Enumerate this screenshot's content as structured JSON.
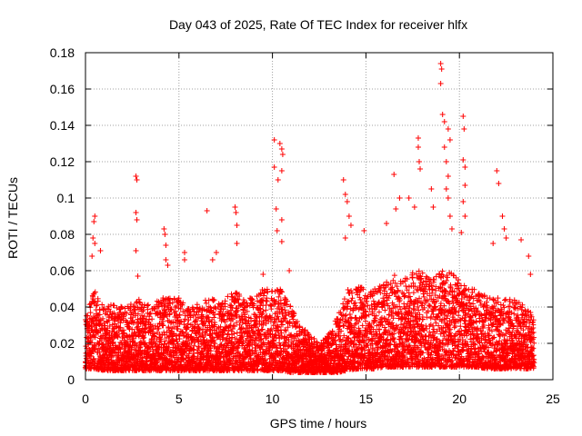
{
  "chart_data": {
    "type": "scatter",
    "title": "Day 043 of 2025, Rate Of TEC Index for receiver hlfx",
    "xlabel": "GPS time / hours",
    "ylabel": "ROTI / TECUs",
    "xlim": [
      0,
      25
    ],
    "ylim": [
      0,
      0.18
    ],
    "xticks": [
      0,
      5,
      10,
      15,
      20,
      25
    ],
    "xtick_labels": [
      "0",
      "5",
      "10",
      "15",
      "20",
      "25"
    ],
    "yticks": [
      0,
      0.02,
      0.04,
      0.06,
      0.08,
      0.1,
      0.12,
      0.14,
      0.16,
      0.18
    ],
    "ytick_labels": [
      "0",
      "0.02",
      "0.04",
      "0.06",
      "0.08",
      "0.1",
      "0.12",
      "0.14",
      "0.16",
      "0.18"
    ],
    "grid": true,
    "marker": "+",
    "series_color": "#ff0000",
    "bulk_envelope": {
      "x": [
        0,
        0.5,
        1,
        1.5,
        2,
        2.5,
        3,
        3.5,
        4,
        4.5,
        5,
        5.5,
        6,
        6.5,
        7,
        7.5,
        8,
        8.5,
        9,
        9.5,
        10,
        10.5,
        11,
        11.5,
        12,
        12.5,
        13,
        13.5,
        14,
        14.5,
        15,
        15.5,
        16,
        16.5,
        17,
        17.5,
        18,
        18.5,
        19,
        19.5,
        20,
        20.5,
        21,
        21.5,
        22,
        22.5,
        23,
        23.5,
        24
      ],
      "y_low": [
        0.006,
        0.006,
        0.005,
        0.005,
        0.005,
        0.005,
        0.005,
        0.005,
        0.005,
        0.005,
        0.005,
        0.005,
        0.005,
        0.005,
        0.005,
        0.005,
        0.005,
        0.005,
        0.005,
        0.005,
        0.005,
        0.005,
        0.004,
        0.004,
        0.004,
        0.004,
        0.004,
        0.004,
        0.005,
        0.006,
        0.006,
        0.006,
        0.007,
        0.007,
        0.007,
        0.007,
        0.007,
        0.007,
        0.007,
        0.007,
        0.007,
        0.007,
        0.007,
        0.006,
        0.006,
        0.006,
        0.006,
        0.006,
        0.006
      ],
      "y_high": [
        0.035,
        0.05,
        0.04,
        0.042,
        0.04,
        0.042,
        0.045,
        0.04,
        0.045,
        0.045,
        0.045,
        0.04,
        0.042,
        0.045,
        0.045,
        0.045,
        0.05,
        0.045,
        0.045,
        0.05,
        0.05,
        0.05,
        0.04,
        0.03,
        0.025,
        0.02,
        0.025,
        0.035,
        0.05,
        0.052,
        0.05,
        0.05,
        0.055,
        0.058,
        0.055,
        0.06,
        0.06,
        0.055,
        0.06,
        0.06,
        0.055,
        0.05,
        0.05,
        0.045,
        0.045,
        0.045,
        0.045,
        0.04,
        0.035
      ]
    },
    "outliers": [
      {
        "x": 0.5,
        "y": 0.09
      },
      {
        "x": 0.45,
        "y": 0.087
      },
      {
        "x": 0.4,
        "y": 0.078
      },
      {
        "x": 0.5,
        "y": 0.075
      },
      {
        "x": 0.35,
        "y": 0.068
      },
      {
        "x": 0.8,
        "y": 0.071
      },
      {
        "x": 2.7,
        "y": 0.112
      },
      {
        "x": 2.75,
        "y": 0.11
      },
      {
        "x": 2.7,
        "y": 0.092
      },
      {
        "x": 2.75,
        "y": 0.088
      },
      {
        "x": 2.7,
        "y": 0.071
      },
      {
        "x": 2.8,
        "y": 0.057
      },
      {
        "x": 4.2,
        "y": 0.083
      },
      {
        "x": 4.25,
        "y": 0.08
      },
      {
        "x": 4.3,
        "y": 0.074
      },
      {
        "x": 4.3,
        "y": 0.066
      },
      {
        "x": 4.4,
        "y": 0.063
      },
      {
        "x": 5.3,
        "y": 0.07
      },
      {
        "x": 5.3,
        "y": 0.066
      },
      {
        "x": 6.5,
        "y": 0.093
      },
      {
        "x": 6.8,
        "y": 0.066
      },
      {
        "x": 7.0,
        "y": 0.07
      },
      {
        "x": 8.0,
        "y": 0.095
      },
      {
        "x": 8.05,
        "y": 0.092
      },
      {
        "x": 8.1,
        "y": 0.085
      },
      {
        "x": 8.1,
        "y": 0.075
      },
      {
        "x": 9.5,
        "y": 0.058
      },
      {
        "x": 10.1,
        "y": 0.132
      },
      {
        "x": 10.4,
        "y": 0.13
      },
      {
        "x": 10.5,
        "y": 0.127
      },
      {
        "x": 10.55,
        "y": 0.124
      },
      {
        "x": 10.1,
        "y": 0.117
      },
      {
        "x": 10.5,
        "y": 0.115
      },
      {
        "x": 10.3,
        "y": 0.11
      },
      {
        "x": 10.2,
        "y": 0.094
      },
      {
        "x": 10.5,
        "y": 0.088
      },
      {
        "x": 10.25,
        "y": 0.082
      },
      {
        "x": 10.5,
        "y": 0.076
      },
      {
        "x": 10.9,
        "y": 0.06
      },
      {
        "x": 13.8,
        "y": 0.11
      },
      {
        "x": 13.9,
        "y": 0.102
      },
      {
        "x": 14.0,
        "y": 0.098
      },
      {
        "x": 14.1,
        "y": 0.09
      },
      {
        "x": 14.2,
        "y": 0.085
      },
      {
        "x": 13.9,
        "y": 0.078
      },
      {
        "x": 14.9,
        "y": 0.082
      },
      {
        "x": 16.1,
        "y": 0.086
      },
      {
        "x": 16.5,
        "y": 0.113
      },
      {
        "x": 16.8,
        "y": 0.1
      },
      {
        "x": 16.6,
        "y": 0.094
      },
      {
        "x": 17.3,
        "y": 0.1
      },
      {
        "x": 17.8,
        "y": 0.133
      },
      {
        "x": 17.8,
        "y": 0.128
      },
      {
        "x": 17.85,
        "y": 0.12
      },
      {
        "x": 17.9,
        "y": 0.116
      },
      {
        "x": 17.6,
        "y": 0.095
      },
      {
        "x": 18.5,
        "y": 0.105
      },
      {
        "x": 18.6,
        "y": 0.095
      },
      {
        "x": 19.0,
        "y": 0.174
      },
      {
        "x": 19.05,
        "y": 0.171
      },
      {
        "x": 19.0,
        "y": 0.163
      },
      {
        "x": 19.1,
        "y": 0.146
      },
      {
        "x": 19.2,
        "y": 0.142
      },
      {
        "x": 19.4,
        "y": 0.138
      },
      {
        "x": 19.5,
        "y": 0.132
      },
      {
        "x": 19.2,
        "y": 0.128
      },
      {
        "x": 19.3,
        "y": 0.12
      },
      {
        "x": 19.4,
        "y": 0.112
      },
      {
        "x": 19.3,
        "y": 0.105
      },
      {
        "x": 19.4,
        "y": 0.1
      },
      {
        "x": 19.5,
        "y": 0.09
      },
      {
        "x": 19.6,
        "y": 0.083
      },
      {
        "x": 20.2,
        "y": 0.145
      },
      {
        "x": 20.25,
        "y": 0.138
      },
      {
        "x": 20.2,
        "y": 0.121
      },
      {
        "x": 20.3,
        "y": 0.117
      },
      {
        "x": 20.3,
        "y": 0.107
      },
      {
        "x": 20.2,
        "y": 0.098
      },
      {
        "x": 20.3,
        "y": 0.09
      },
      {
        "x": 20.1,
        "y": 0.081
      },
      {
        "x": 22.0,
        "y": 0.115
      },
      {
        "x": 22.1,
        "y": 0.108
      },
      {
        "x": 22.3,
        "y": 0.09
      },
      {
        "x": 22.4,
        "y": 0.083
      },
      {
        "x": 21.8,
        "y": 0.075
      },
      {
        "x": 22.5,
        "y": 0.078
      },
      {
        "x": 23.3,
        "y": 0.077
      },
      {
        "x": 23.7,
        "y": 0.068
      },
      {
        "x": 23.8,
        "y": 0.058
      }
    ]
  }
}
